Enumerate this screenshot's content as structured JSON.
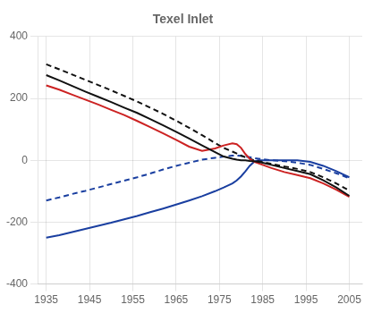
{
  "chart_data": {
    "type": "line",
    "title": "Texel Inlet",
    "x": [
      1935,
      1938,
      1941,
      1944,
      1947,
      1950,
      1953,
      1956,
      1959,
      1962,
      1965,
      1968,
      1971,
      1974,
      1976,
      1978,
      1979,
      1980,
      1981,
      1982,
      1983,
      1984,
      1985,
      1987,
      1990,
      1993,
      1996,
      1999,
      2002,
      2005
    ],
    "xlim": [
      1933,
      2008
    ],
    "xticks": [
      1935,
      1945,
      1955,
      1965,
      1975,
      1985,
      1995,
      2005
    ],
    "ylim": [
      -400,
      400
    ],
    "yticks": [
      -400,
      -200,
      0,
      200,
      400
    ],
    "grid": true,
    "series": [
      {
        "color": "#1a3fa0",
        "line_style": "dashed",
        "values": [
          -130,
          -120,
          -109,
          -99,
          -88,
          -77,
          -66,
          -55,
          -43,
          -30,
          -18,
          -8,
          2,
          8,
          12,
          15,
          15,
          14,
          12,
          10,
          7,
          5,
          3,
          0,
          -3,
          -8,
          -15,
          -28,
          -42,
          -58
        ]
      },
      {
        "color": "#1a3fa0",
        "line_style": "solid",
        "values": [
          -250,
          -242,
          -232,
          -222,
          -212,
          -202,
          -191,
          -180,
          -168,
          -156,
          -143,
          -130,
          -116,
          -100,
          -88,
          -75,
          -65,
          -52,
          -36,
          -18,
          -5,
          0,
          0,
          0,
          0,
          0,
          -5,
          -18,
          -35,
          -55
        ]
      },
      {
        "color": "#111111",
        "line_style": "dashed",
        "values": [
          310,
          294,
          277,
          260,
          243,
          226,
          208,
          190,
          170,
          150,
          128,
          105,
          81,
          56,
          40,
          28,
          22,
          15,
          10,
          5,
          0,
          -3,
          -5,
          -12,
          -20,
          -28,
          -38,
          -55,
          -75,
          -98
        ]
      },
      {
        "color": "#cc2222",
        "line_style": "solid",
        "values": [
          242,
          228,
          212,
          196,
          180,
          163,
          146,
          127,
          107,
          87,
          66,
          44,
          30,
          38,
          48,
          55,
          52,
          40,
          20,
          5,
          -5,
          -10,
          -15,
          -25,
          -38,
          -48,
          -58,
          -75,
          -95,
          -118
        ]
      },
      {
        "color": "#111111",
        "line_style": "solid",
        "values": [
          275,
          258,
          240,
          222,
          205,
          188,
          170,
          153,
          133,
          113,
          92,
          70,
          48,
          26,
          12,
          5,
          2,
          0,
          0,
          -2,
          -3,
          -5,
          -8,
          -15,
          -25,
          -35,
          -45,
          -65,
          -88,
          -115
        ]
      }
    ]
  }
}
